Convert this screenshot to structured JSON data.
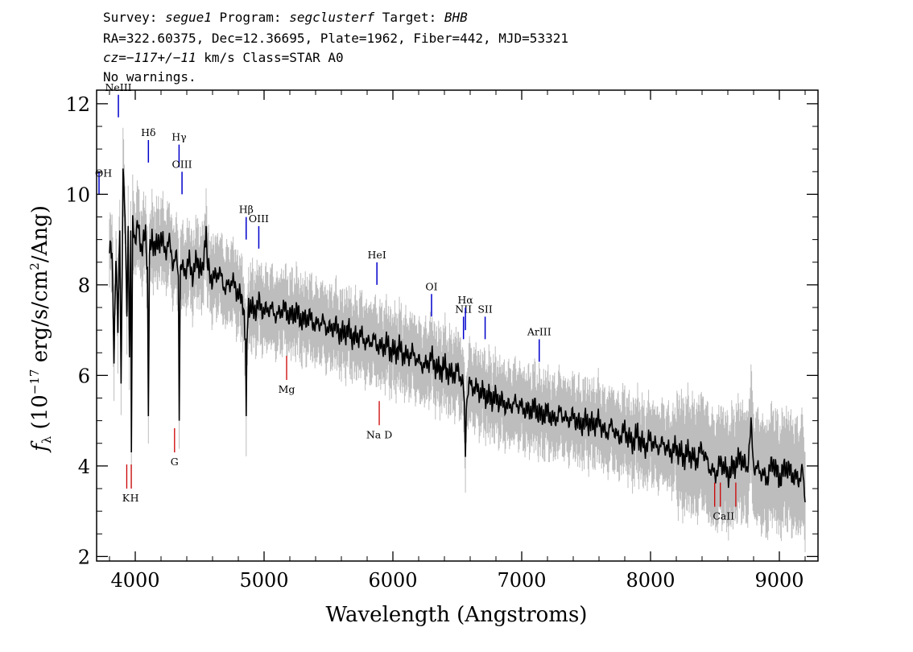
{
  "header": {
    "line1": {
      "survey_label": "Survey: ",
      "survey": "segue1",
      "program_label": " Program: ",
      "program": "segclusterf",
      "target_label": " Target: ",
      "target": "BHB"
    },
    "line2": "RA=322.60375, Dec=12.36695, Plate=1962, Fiber=442, MJD=53321",
    "line3": {
      "cz_label": "cz=",
      "cz": "−117+/−11",
      "rest": " km/s Class=STAR A0"
    },
    "line4": "No warnings."
  },
  "colors": {
    "flux": "#000000",
    "error": "#bdbdbd",
    "emission_line": "#0000cc",
    "absorption_line": "#cc0000"
  },
  "chart_data": {
    "type": "line",
    "xlabel": "Wavelength (Angstroms)",
    "ylabel": "fλ (10⁻¹⁷ erg/s/cm²/Ang)",
    "xlim": [
      3700,
      9300
    ],
    "ylim": [
      1.9,
      12.3
    ],
    "grid": false,
    "xticks": [
      4000,
      5000,
      6000,
      7000,
      8000,
      9000
    ],
    "xtick_labels": [
      "4000",
      "5000",
      "6000",
      "7000",
      "8000",
      "9000"
    ],
    "yticks": [
      2,
      4,
      6,
      8,
      10,
      12
    ],
    "ytick_labels": [
      "2",
      "4",
      "6",
      "8",
      "10",
      "12"
    ],
    "series": [
      {
        "points": [
          [
            3800,
            9.0
          ],
          [
            3820,
            8.6
          ],
          [
            3835,
            6.4
          ],
          [
            3850,
            8.8
          ],
          [
            3865,
            7.0
          ],
          [
            3880,
            9.2
          ],
          [
            3890,
            5.8
          ],
          [
            3905,
            10.6
          ],
          [
            3920,
            9.5
          ],
          [
            3935,
            7.3
          ],
          [
            3945,
            9.3
          ],
          [
            3955,
            6.4
          ],
          [
            3965,
            9.2
          ],
          [
            3970,
            4.3
          ],
          [
            3980,
            9.4
          ],
          [
            4000,
            9.0
          ],
          [
            4020,
            9.3
          ],
          [
            4050,
            8.8
          ],
          [
            4080,
            9.1
          ],
          [
            4095,
            8.4
          ],
          [
            4102,
            5.1
          ],
          [
            4110,
            8.6
          ],
          [
            4130,
            9.0
          ],
          [
            4170,
            8.8
          ],
          [
            4200,
            9.1
          ],
          [
            4230,
            8.7
          ],
          [
            4260,
            9.0
          ],
          [
            4290,
            8.5
          ],
          [
            4320,
            8.6
          ],
          [
            4335,
            8.2
          ],
          [
            4341,
            5.0
          ],
          [
            4350,
            8.4
          ],
          [
            4380,
            8.3
          ],
          [
            4420,
            8.5
          ],
          [
            4450,
            8.2
          ],
          [
            4480,
            8.6
          ],
          [
            4520,
            8.2
          ],
          [
            4550,
            9.3
          ],
          [
            4560,
            8.4
          ],
          [
            4600,
            8.1
          ],
          [
            4650,
            8.3
          ],
          [
            4700,
            7.9
          ],
          [
            4750,
            8.1
          ],
          [
            4800,
            7.8
          ],
          [
            4840,
            7.6
          ],
          [
            4856,
            6.8
          ],
          [
            4861,
            5.1
          ],
          [
            4866,
            6.7
          ],
          [
            4880,
            7.6
          ],
          [
            4920,
            7.4
          ],
          [
            4960,
            7.6
          ],
          [
            5000,
            7.4
          ],
          [
            5050,
            7.5
          ],
          [
            5100,
            7.3
          ],
          [
            5150,
            7.5
          ],
          [
            5200,
            7.3
          ],
          [
            5250,
            7.4
          ],
          [
            5300,
            7.2
          ],
          [
            5350,
            7.3
          ],
          [
            5400,
            7.1
          ],
          [
            5450,
            7.2
          ],
          [
            5500,
            7.0
          ],
          [
            5550,
            7.1
          ],
          [
            5600,
            6.9
          ],
          [
            5650,
            7.0
          ],
          [
            5700,
            6.8
          ],
          [
            5750,
            6.9
          ],
          [
            5800,
            6.7
          ],
          [
            5850,
            6.8
          ],
          [
            5900,
            6.6
          ],
          [
            5950,
            6.7
          ],
          [
            6000,
            6.5
          ],
          [
            6050,
            6.6
          ],
          [
            6100,
            6.4
          ],
          [
            6150,
            6.5
          ],
          [
            6200,
            6.3
          ],
          [
            6250,
            6.2
          ],
          [
            6300,
            6.4
          ],
          [
            6350,
            6.1
          ],
          [
            6400,
            6.2
          ],
          [
            6450,
            6.0
          ],
          [
            6500,
            6.1
          ],
          [
            6540,
            5.9
          ],
          [
            6555,
            5.4
          ],
          [
            6563,
            4.2
          ],
          [
            6570,
            5.4
          ],
          [
            6590,
            5.8
          ],
          [
            6650,
            5.7
          ],
          [
            6700,
            5.6
          ],
          [
            6750,
            5.5
          ],
          [
            6800,
            5.5
          ],
          [
            6850,
            5.4
          ],
          [
            6900,
            5.3
          ],
          [
            6950,
            5.4
          ],
          [
            7000,
            5.3
          ],
          [
            7050,
            5.2
          ],
          [
            7100,
            5.3
          ],
          [
            7150,
            5.1
          ],
          [
            7200,
            5.2
          ],
          [
            7250,
            5.0
          ],
          [
            7300,
            5.2
          ],
          [
            7350,
            5.0
          ],
          [
            7400,
            5.1
          ],
          [
            7450,
            4.9
          ],
          [
            7500,
            5.0
          ],
          [
            7550,
            4.9
          ],
          [
            7600,
            5.0
          ],
          [
            7650,
            4.7
          ],
          [
            7700,
            4.9
          ],
          [
            7750,
            4.6
          ],
          [
            7800,
            4.8
          ],
          [
            7850,
            4.5
          ],
          [
            7900,
            4.7
          ],
          [
            7950,
            4.4
          ],
          [
            8000,
            4.6
          ],
          [
            8050,
            4.4
          ],
          [
            8100,
            4.5
          ],
          [
            8150,
            4.3
          ],
          [
            8200,
            4.4
          ],
          [
            8250,
            4.2
          ],
          [
            8300,
            4.3
          ],
          [
            8350,
            4.1
          ],
          [
            8400,
            4.4
          ],
          [
            8450,
            4.0
          ],
          [
            8500,
            3.8
          ],
          [
            8550,
            4.1
          ],
          [
            8600,
            3.8
          ],
          [
            8650,
            4.0
          ],
          [
            8700,
            4.2
          ],
          [
            8750,
            3.9
          ],
          [
            8780,
            4.9
          ],
          [
            8800,
            4.0
          ],
          [
            8850,
            3.9
          ],
          [
            8900,
            3.7
          ],
          [
            8950,
            4.1
          ],
          [
            9000,
            3.7
          ],
          [
            9050,
            4.0
          ],
          [
            9100,
            3.8
          ],
          [
            9150,
            3.7
          ],
          [
            9180,
            3.9
          ],
          [
            9200,
            3.2
          ]
        ]
      }
    ],
    "emission_lines": [
      {
        "label": "NeIII",
        "x": 3869,
        "y": 11.7
      },
      {
        "label": "Hδ",
        "x": 4102,
        "y": 10.7
      },
      {
        "label": "Hγ",
        "x": 4340,
        "y": 10.6
      },
      {
        "label": "OIII",
        "x": 4363,
        "y": 10.0
      },
      {
        "label": "Hβ",
        "x": 4861,
        "y": 9.0
      },
      {
        "label": "OIII",
        "x": 4959,
        "y": 8.8
      },
      {
        "label": "HeI",
        "x": 5876,
        "y": 8.0
      },
      {
        "label": "OI",
        "x": 6300,
        "y": 7.3
      },
      {
        "label": "NII",
        "x": 6548,
        "y": 6.8
      },
      {
        "label": "Hα",
        "x": 6563,
        "y": 7.0
      },
      {
        "label": "SII",
        "x": 6716,
        "y": 6.8
      },
      {
        "label": "ArIII",
        "x": 7136,
        "y": 6.3
      }
    ],
    "absorption_lines": [
      {
        "label": "K",
        "x": 3934,
        "y": 3.5
      },
      {
        "label": "H",
        "x": 3969,
        "y": 3.5
      },
      {
        "label": "G",
        "x": 4305,
        "y": 4.3
      },
      {
        "label": "Mg",
        "x": 5175,
        "y": 5.9
      },
      {
        "label": "Na  D",
        "x": 5894,
        "y": 4.9
      },
      {
        "label": "CaII",
        "x": 8498,
        "y": 3.1
      },
      {
        "label": "CaII",
        "x": 8542,
        "y": 3.1
      },
      {
        "label": "CaII",
        "x": 8662,
        "y": 3.1
      }
    ],
    "edge_labels": [
      {
        "label": "ΘH"
      }
    ]
  }
}
